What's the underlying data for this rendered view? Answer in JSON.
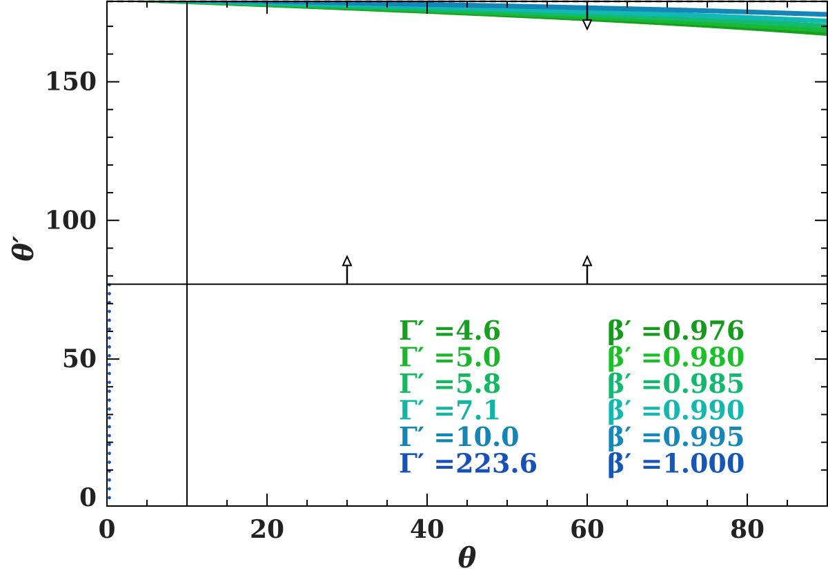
{
  "chart_data": {
    "type": "line",
    "xlabel": "θ",
    "ylabel": "θ′",
    "xlim": [
      0,
      90
    ],
    "ylim": [
      -3,
      179
    ],
    "x_ticks": [
      0,
      20,
      40,
      60,
      80
    ],
    "y_ticks": [
      0,
      50,
      100,
      150
    ],
    "grid": false,
    "series": [
      {
        "gamma_label": "Γ′ =4.6",
        "beta_label": "β′ =0.976",
        "beta": 0.976,
        "color": "#16a020",
        "gamma_color": "#16a020",
        "beta_color": "#159a1e",
        "style": "solid"
      },
      {
        "gamma_label": "Γ′ =5.0",
        "beta_label": "β′ =0.980",
        "beta": 0.98,
        "color": "#1ab832",
        "gamma_color": "#1cb42a",
        "beta_color": "#1ac028",
        "style": "solid"
      },
      {
        "gamma_label": "Γ′ =5.8",
        "beta_label": "β′ =0.985",
        "beta": 0.985,
        "color": "#14ba70",
        "gamma_color": "#14b860",
        "beta_color": "#12b870",
        "style": "solid"
      },
      {
        "gamma_label": "Γ′ =7.1",
        "beta_label": "β′ =0.990",
        "beta": 0.99,
        "color": "#12b8b2",
        "gamma_color": "#12b4a2",
        "beta_color": "#12b8b0",
        "style": "solid"
      },
      {
        "gamma_label": "Γ′ =10.0",
        "beta_label": "β′ =0.995",
        "beta": 0.995,
        "color": "#1486b8",
        "gamma_color": "#1484b2",
        "beta_color": "#1488b8",
        "style": "solid"
      },
      {
        "gamma_label": "Γ′ =223.6",
        "beta_label": "β′ =1.000",
        "beta": 0.99999,
        "color": "#1656b8",
        "gamma_color": "#1650b8",
        "beta_color": "#1656b8",
        "style": "dotted"
      }
    ],
    "reference_lines": {
      "vertical_x": 10,
      "horizontal_y": 77,
      "dashed_y": 179
    },
    "arrows": [
      {
        "x": 30,
        "from_y": 77,
        "to_y": 87
      },
      {
        "x": 60,
        "from_y": 77,
        "to_y": 87
      },
      {
        "x": 60,
        "from_y": 179,
        "to_y": 169
      }
    ]
  }
}
